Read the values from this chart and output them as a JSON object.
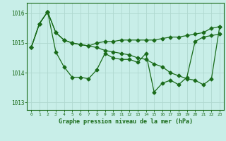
{
  "background_color": "#c8eee8",
  "grid_color": "#b0d8d0",
  "line_color": "#1a6b1a",
  "xlabel": "Graphe pression niveau de la mer (hPa)",
  "ylim": [
    1012.75,
    1016.35
  ],
  "xlim": [
    -0.5,
    23.5
  ],
  "yticks": [
    1013,
    1014,
    1015,
    1016
  ],
  "xticks": [
    0,
    1,
    2,
    3,
    4,
    5,
    6,
    7,
    8,
    9,
    10,
    11,
    12,
    13,
    14,
    15,
    16,
    17,
    18,
    19,
    20,
    21,
    22,
    23
  ],
  "line1_x": [
    0,
    1,
    2,
    3,
    4,
    5,
    6,
    7,
    8,
    9,
    10,
    11,
    12,
    13,
    14,
    15,
    16,
    17,
    18,
    19,
    20,
    21,
    22,
    23
  ],
  "line1_y": [
    1014.85,
    1015.65,
    1016.05,
    1014.7,
    1014.2,
    1013.85,
    1013.85,
    1013.8,
    1014.1,
    1014.65,
    1014.5,
    1014.45,
    1014.45,
    1014.35,
    1014.65,
    1013.35,
    1013.65,
    1013.75,
    1013.6,
    1013.85,
    1015.05,
    1015.2,
    1015.25,
    1015.3
  ],
  "line2_x": [
    0,
    1,
    2,
    3,
    4,
    5,
    6,
    7,
    8,
    9,
    10,
    11,
    12,
    13,
    14,
    15,
    16,
    17,
    18,
    19,
    20,
    21,
    22,
    23
  ],
  "line2_y": [
    1014.85,
    1015.65,
    1016.05,
    1015.35,
    1015.1,
    1015.0,
    1014.95,
    1014.9,
    1014.85,
    1014.75,
    1014.7,
    1014.65,
    1014.6,
    1014.5,
    1014.45,
    1014.3,
    1014.2,
    1014.0,
    1013.9,
    1013.8,
    1013.75,
    1013.6,
    1013.8,
    1015.55
  ],
  "line3_x": [
    0,
    1,
    2,
    3,
    4,
    5,
    6,
    7,
    8,
    9,
    10,
    11,
    12,
    13,
    14,
    15,
    16,
    17,
    18,
    19,
    20,
    21,
    22,
    23
  ],
  "line3_y": [
    1014.85,
    1015.65,
    1016.05,
    1015.35,
    1015.1,
    1015.0,
    1014.95,
    1014.9,
    1015.0,
    1015.05,
    1015.05,
    1015.1,
    1015.1,
    1015.1,
    1015.1,
    1015.1,
    1015.15,
    1015.2,
    1015.2,
    1015.25,
    1015.3,
    1015.35,
    1015.5,
    1015.55
  ]
}
